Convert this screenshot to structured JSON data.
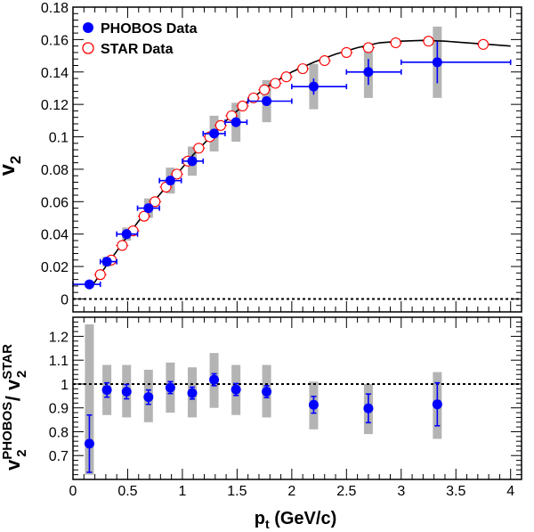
{
  "colors": {
    "phobos": "#0000ff",
    "star": "#ff0000",
    "syst_band": "#b4b4b4",
    "fit_curve": "#000000",
    "reference_line": "#000000"
  },
  "chart_data": [
    {
      "type": "scatter",
      "panel": "top",
      "ylabel_main": "v",
      "ylabel_sub": "2",
      "ylim": [
        -0.008,
        0.18
      ],
      "xlim": [
        0,
        4.1
      ],
      "y_ticks": [
        "0",
        "0.02",
        "0.04",
        "0.06",
        "0.08",
        "0.1",
        "0.12",
        "0.14",
        "0.16",
        "0.18"
      ],
      "y_tick_values": [
        0,
        0.02,
        0.04,
        0.06,
        0.08,
        0.1,
        0.12,
        0.14,
        0.16,
        0.18
      ],
      "reference_line_y": 0,
      "legend": {
        "placement": "top-left",
        "entries": [
          "PHOBOS Data",
          "STAR Data"
        ]
      },
      "series": [
        {
          "name": "PHOBOS Data",
          "marker": "filled-circle",
          "points": [
            {
              "x": 0.15,
              "y": 0.009,
              "xerr": [
                0.15,
                0.1
              ],
              "yerr": 0.002,
              "syst": 0.002
            },
            {
              "x": 0.31,
              "y": 0.023,
              "xerr": [
                0.06,
                0.09
              ],
              "yerr": 0.002,
              "syst": 0.003
            },
            {
              "x": 0.49,
              "y": 0.04,
              "xerr": [
                0.09,
                0.1
              ],
              "yerr": 0.002,
              "syst": 0.004
            },
            {
              "x": 0.69,
              "y": 0.056,
              "xerr": [
                0.1,
                0.1
              ],
              "yerr": 0.002,
              "syst": 0.006
            },
            {
              "x": 0.89,
              "y": 0.073,
              "xerr": [
                0.1,
                0.1
              ],
              "yerr": 0.002,
              "syst": 0.008
            },
            {
              "x": 1.09,
              "y": 0.085,
              "xerr": [
                0.09,
                0.1
              ],
              "yerr": 0.002,
              "syst": 0.009
            },
            {
              "x": 1.29,
              "y": 0.102,
              "xerr": [
                0.1,
                0.1
              ],
              "yerr": 0.002,
              "syst": 0.011
            },
            {
              "x": 1.49,
              "y": 0.109,
              "xerr": [
                0.1,
                0.1
              ],
              "yerr": 0.003,
              "syst": 0.012
            },
            {
              "x": 1.77,
              "y": 0.122,
              "xerr": [
                0.17,
                0.23
              ],
              "yerr": 0.003,
              "syst": 0.013
            },
            {
              "x": 2.2,
              "y": 0.131,
              "xerr": [
                0.2,
                0.3
              ],
              "yerr": 0.005,
              "syst": 0.014
            },
            {
              "x": 2.7,
              "y": 0.14,
              "xerr": [
                0.2,
                0.3
              ],
              "yerr": 0.008,
              "syst": 0.016
            },
            {
              "x": 3.33,
              "y": 0.146,
              "xerr": [
                0.33,
                0.67
              ],
              "yerr": 0.013,
              "syst": 0.022
            }
          ]
        },
        {
          "name": "STAR Data",
          "marker": "open-circle",
          "points": [
            {
              "x": 0.25,
              "y": 0.015
            },
            {
              "x": 0.35,
              "y": 0.024
            },
            {
              "x": 0.45,
              "y": 0.033
            },
            {
              "x": 0.55,
              "y": 0.042
            },
            {
              "x": 0.65,
              "y": 0.051
            },
            {
              "x": 0.75,
              "y": 0.06
            },
            {
              "x": 0.85,
              "y": 0.069
            },
            {
              "x": 0.95,
              "y": 0.077
            },
            {
              "x": 1.05,
              "y": 0.085
            },
            {
              "x": 1.15,
              "y": 0.093
            },
            {
              "x": 1.25,
              "y": 0.1
            },
            {
              "x": 1.35,
              "y": 0.107
            },
            {
              "x": 1.45,
              "y": 0.113
            },
            {
              "x": 1.55,
              "y": 0.119
            },
            {
              "x": 1.65,
              "y": 0.124
            },
            {
              "x": 1.75,
              "y": 0.129
            },
            {
              "x": 1.85,
              "y": 0.133
            },
            {
              "x": 1.95,
              "y": 0.137
            },
            {
              "x": 2.1,
              "y": 0.142
            },
            {
              "x": 2.3,
              "y": 0.147
            },
            {
              "x": 2.5,
              "y": 0.152
            },
            {
              "x": 2.7,
              "y": 0.155
            },
            {
              "x": 2.95,
              "y": 0.158
            },
            {
              "x": 3.25,
              "y": 0.159
            },
            {
              "x": 3.75,
              "y": 0.157
            }
          ]
        }
      ],
      "fit_curve": {
        "points": [
          [
            0.15,
            0.006
          ],
          [
            0.2,
            0.0105
          ],
          [
            0.3,
            0.02
          ],
          [
            0.4,
            0.0295
          ],
          [
            0.5,
            0.039
          ],
          [
            0.6,
            0.048
          ],
          [
            0.7,
            0.057
          ],
          [
            0.8,
            0.065
          ],
          [
            0.9,
            0.073
          ],
          [
            1.0,
            0.081
          ],
          [
            1.1,
            0.089
          ],
          [
            1.2,
            0.096
          ],
          [
            1.3,
            0.103
          ],
          [
            1.4,
            0.11
          ],
          [
            1.5,
            0.116
          ],
          [
            1.6,
            0.122
          ],
          [
            1.7,
            0.127
          ],
          [
            1.8,
            0.132
          ],
          [
            1.9,
            0.136
          ],
          [
            2.0,
            0.14
          ],
          [
            2.2,
            0.146
          ],
          [
            2.4,
            0.151
          ],
          [
            2.6,
            0.155
          ],
          [
            2.8,
            0.158
          ],
          [
            3.0,
            0.159
          ],
          [
            3.2,
            0.1595
          ],
          [
            3.4,
            0.159
          ],
          [
            3.6,
            0.158
          ],
          [
            3.8,
            0.157
          ],
          [
            4.0,
            0.156
          ]
        ]
      }
    },
    {
      "type": "scatter",
      "panel": "bottom",
      "ylabel_num_main": "v",
      "ylabel_num_sub": "2",
      "ylabel_num_sup": "PHOBOS",
      "ylabel_sep": " / ",
      "ylabel_den_main": "v",
      "ylabel_den_sub": "2",
      "ylabel_den_sup": "STAR",
      "xlabel_main": "p",
      "xlabel_sub": "t",
      "xlabel_rest": " (GeV/c)",
      "ylim": [
        0.6,
        1.28
      ],
      "xlim": [
        0,
        4.1
      ],
      "y_ticks": [
        "0.7",
        "0.8",
        "0.9",
        "1",
        "1.1",
        "1.2"
      ],
      "y_tick_values": [
        0.7,
        0.8,
        0.9,
        1.0,
        1.1,
        1.2
      ],
      "x_ticks": [
        "0",
        "0.5",
        "1",
        "1.5",
        "2",
        "2.5",
        "3",
        "3.5",
        "4"
      ],
      "x_tick_values": [
        0,
        0.5,
        1,
        1.5,
        2,
        2.5,
        3,
        3.5,
        4
      ],
      "reference_line_y": 1,
      "series": [
        {
          "name": "PHOBOS Data",
          "marker": "filled-circle",
          "points": [
            {
              "x": 0.15,
              "y": 0.75,
              "yerr": 0.12,
              "syst_lo": 0.62,
              "syst_hi": 1.25
            },
            {
              "x": 0.31,
              "y": 0.975,
              "yerr": 0.03,
              "syst_lo": 0.87,
              "syst_hi": 1.08
            },
            {
              "x": 0.49,
              "y": 0.968,
              "yerr": 0.03,
              "syst_lo": 0.86,
              "syst_hi": 1.08
            },
            {
              "x": 0.69,
              "y": 0.945,
              "yerr": 0.03,
              "syst_lo": 0.84,
              "syst_hi": 1.06
            },
            {
              "x": 0.89,
              "y": 0.985,
              "yerr": 0.025,
              "syst_lo": 0.88,
              "syst_hi": 1.09
            },
            {
              "x": 1.09,
              "y": 0.962,
              "yerr": 0.025,
              "syst_lo": 0.86,
              "syst_hi": 1.07
            },
            {
              "x": 1.29,
              "y": 1.018,
              "yerr": 0.025,
              "syst_lo": 0.9,
              "syst_hi": 1.13
            },
            {
              "x": 1.49,
              "y": 0.977,
              "yerr": 0.025,
              "syst_lo": 0.87,
              "syst_hi": 1.08
            },
            {
              "x": 1.77,
              "y": 0.968,
              "yerr": 0.025,
              "syst_lo": 0.86,
              "syst_hi": 1.08
            },
            {
              "x": 2.2,
              "y": 0.913,
              "yerr": 0.035,
              "syst_lo": 0.81,
              "syst_hi": 1.01
            },
            {
              "x": 2.7,
              "y": 0.898,
              "yerr": 0.06,
              "syst_lo": 0.79,
              "syst_hi": 1.0
            },
            {
              "x": 3.33,
              "y": 0.915,
              "yerr": 0.09,
              "syst_lo": 0.77,
              "syst_hi": 1.05
            }
          ]
        }
      ]
    }
  ]
}
